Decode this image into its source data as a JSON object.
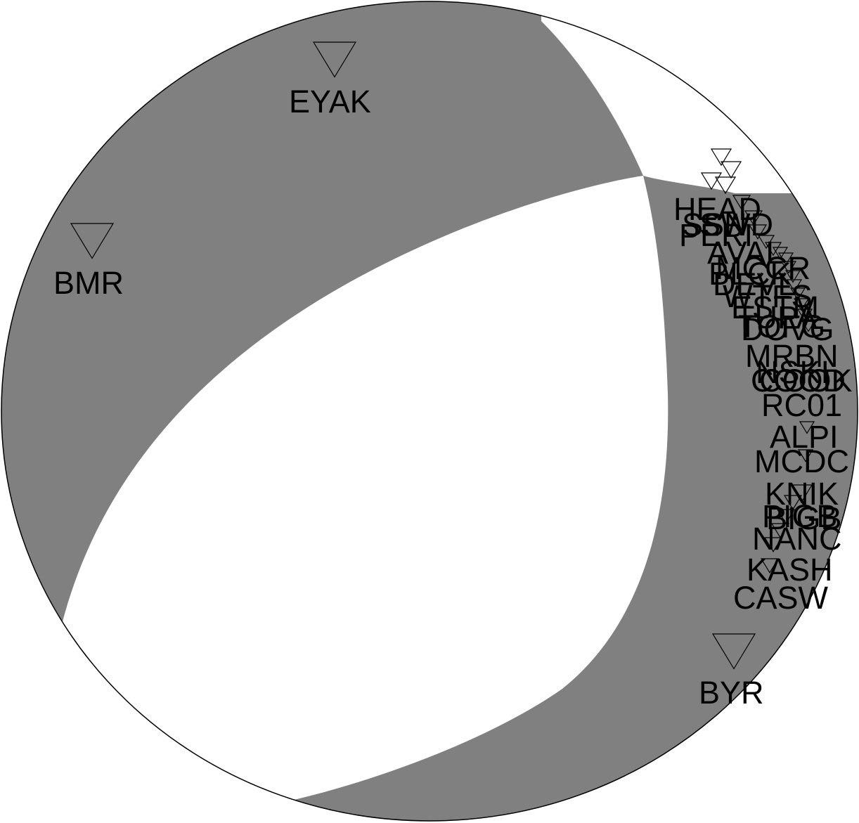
{
  "figure": {
    "type": "focal-mechanism-beachball",
    "compressional_color": "#808080",
    "dilatational_color": "#ffffff",
    "outline_color": "#000000",
    "station_marker": "inverted-triangle-open"
  },
  "stations": [
    "EYAK",
    "BMR",
    "HEAD",
    "SSN",
    "SWD",
    "PERI",
    "AVAL",
    "MCCR",
    "BLCK",
    "DEVL",
    "WTFS",
    "ESTM",
    "TUPA",
    "TOFG",
    "DOVG",
    "MRBN",
    "NSKI",
    "COOK",
    "COOD",
    "RC01",
    "ALPI",
    "MCDC",
    "KNIK",
    "PIGB",
    "BIGB",
    "NANC",
    "KASH",
    "CASW",
    "BYR"
  ]
}
